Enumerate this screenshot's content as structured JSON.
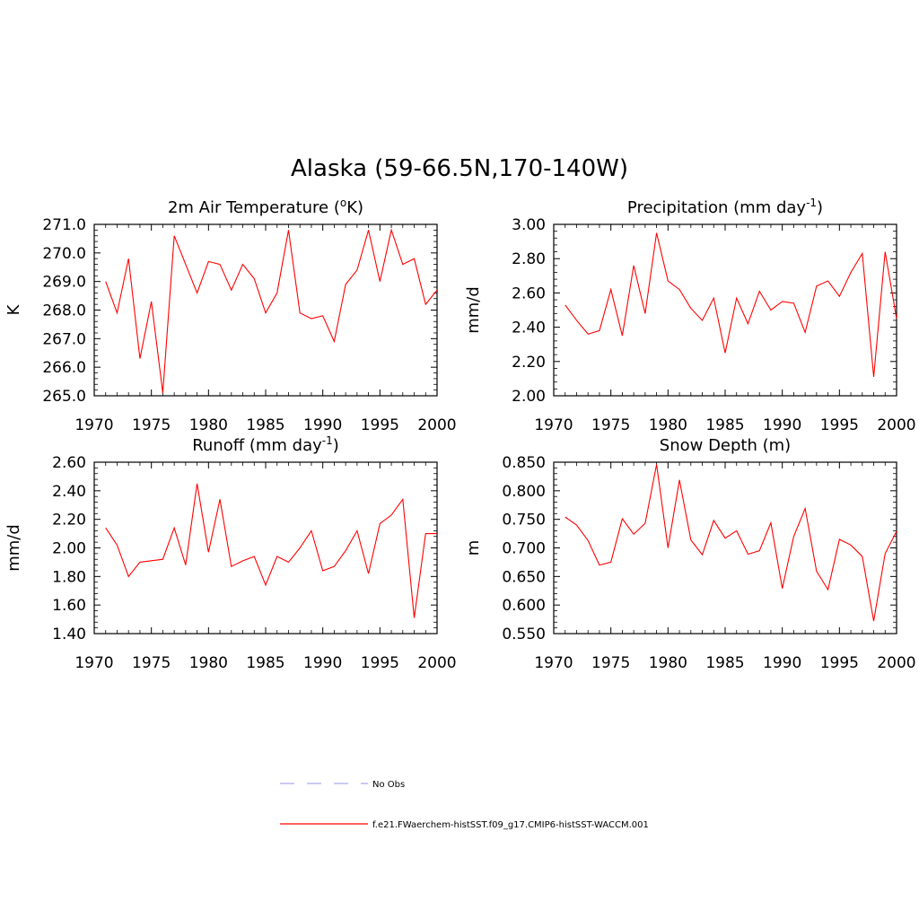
{
  "figure": {
    "title": "Alaska (59-66.5N,170-140W)"
  },
  "legend": {
    "items": [
      {
        "label": "No Obs",
        "style": "dashed",
        "color": "#aaaaee"
      },
      {
        "label": "f.e21.FWaerchem-histSST.f09_g17.CMIP6-histSST-WACCM.001",
        "style": "solid",
        "color": "#ff0000"
      }
    ]
  },
  "chart_data": [
    {
      "type": "line",
      "title": "2m Air Temperature",
      "title_unit": "K",
      "ylabel": "K",
      "xlim": [
        1970,
        2000
      ],
      "ylim": [
        265.0,
        271.0
      ],
      "yticks": [
        265.0,
        266.0,
        267.0,
        268.0,
        269.0,
        270.0,
        271.0
      ],
      "ytick_labels": [
        "265.0",
        "266.0",
        "267.0",
        "268.0",
        "269.0",
        "270.0",
        "271.0"
      ],
      "xticks": [
        1970,
        1975,
        1980,
        1985,
        1990,
        1995,
        2000
      ],
      "x": [
        1971,
        1972,
        1973,
        1974,
        1975,
        1976,
        1977,
        1978,
        1979,
        1980,
        1981,
        1982,
        1983,
        1984,
        1985,
        1986,
        1987,
        1988,
        1989,
        1990,
        1991,
        1992,
        1993,
        1994,
        1995,
        1996,
        1997,
        1998,
        1999,
        2000
      ],
      "series": [
        {
          "color": "#ff0000",
          "values": [
            269.0,
            267.9,
            269.8,
            266.3,
            268.3,
            265.1,
            270.6,
            269.6,
            268.6,
            269.7,
            269.6,
            268.7,
            269.6,
            269.1,
            267.9,
            268.6,
            270.8,
            267.9,
            267.7,
            267.8,
            266.9,
            268.9,
            269.4,
            270.8,
            269.0,
            270.8,
            269.6,
            269.8,
            268.2,
            268.7
          ]
        }
      ]
    },
    {
      "type": "line",
      "title": "Precipitation",
      "title_unit": "mm day",
      "title_sup": "-1",
      "ylabel": "mm/d",
      "xlim": [
        1970,
        2000
      ],
      "ylim": [
        2.0,
        3.0
      ],
      "yticks": [
        2.0,
        2.2,
        2.4,
        2.6,
        2.8,
        3.0
      ],
      "ytick_labels": [
        "2.00",
        "2.20",
        "2.40",
        "2.60",
        "2.80",
        "3.00"
      ],
      "xticks": [
        1970,
        1975,
        1980,
        1985,
        1990,
        1995,
        2000
      ],
      "x": [
        1971,
        1972,
        1973,
        1974,
        1975,
        1976,
        1977,
        1978,
        1979,
        1980,
        1981,
        1982,
        1983,
        1984,
        1985,
        1986,
        1987,
        1988,
        1989,
        1990,
        1991,
        1992,
        1993,
        1994,
        1995,
        1996,
        1997,
        1998,
        1999,
        2000
      ],
      "series": [
        {
          "color": "#ff0000",
          "values": [
            2.53,
            2.44,
            2.36,
            2.38,
            2.62,
            2.35,
            2.76,
            2.48,
            2.95,
            2.67,
            2.62,
            2.51,
            2.44,
            2.57,
            2.25,
            2.57,
            2.42,
            2.61,
            2.5,
            2.55,
            2.54,
            2.37,
            2.64,
            2.67,
            2.58,
            2.72,
            2.83,
            2.11,
            2.84,
            2.45
          ]
        }
      ]
    },
    {
      "type": "line",
      "title": "Runoff",
      "title_unit": "mm day",
      "title_sup": "-1",
      "ylabel": "mm/d",
      "xlim": [
        1970,
        2000
      ],
      "ylim": [
        1.4,
        2.6
      ],
      "yticks": [
        1.4,
        1.6,
        1.8,
        2.0,
        2.2,
        2.4,
        2.6
      ],
      "ytick_labels": [
        "1.40",
        "1.60",
        "1.80",
        "2.00",
        "2.20",
        "2.40",
        "2.60"
      ],
      "xticks": [
        1970,
        1975,
        1980,
        1985,
        1990,
        1995,
        2000
      ],
      "x": [
        1971,
        1972,
        1973,
        1974,
        1975,
        1976,
        1977,
        1978,
        1979,
        1980,
        1981,
        1982,
        1983,
        1984,
        1985,
        1986,
        1987,
        1988,
        1989,
        1990,
        1991,
        1992,
        1993,
        1994,
        1995,
        1996,
        1997,
        1998,
        1999,
        2000
      ],
      "series": [
        {
          "color": "#ff0000",
          "values": [
            2.14,
            2.02,
            1.8,
            1.9,
            1.91,
            1.92,
            2.14,
            1.88,
            2.45,
            1.97,
            2.34,
            1.87,
            1.91,
            1.94,
            1.74,
            1.94,
            1.9,
            2.0,
            2.12,
            1.84,
            1.87,
            1.98,
            2.12,
            1.82,
            2.17,
            2.23,
            2.34,
            1.51,
            2.1,
            2.1
          ]
        }
      ]
    },
    {
      "type": "line",
      "title": "Snow Depth (m)",
      "ylabel": "m",
      "xlim": [
        1970,
        2000
      ],
      "ylim": [
        0.55,
        0.85
      ],
      "yticks": [
        0.55,
        0.6,
        0.65,
        0.7,
        0.75,
        0.8,
        0.85
      ],
      "ytick_labels": [
        "0.550",
        "0.600",
        "0.650",
        "0.700",
        "0.750",
        "0.800",
        "0.850"
      ],
      "xticks": [
        1970,
        1975,
        1980,
        1985,
        1990,
        1995,
        2000
      ],
      "x": [
        1971,
        1972,
        1973,
        1974,
        1975,
        1976,
        1977,
        1978,
        1979,
        1980,
        1981,
        1982,
        1983,
        1984,
        1985,
        1986,
        1987,
        1988,
        1989,
        1990,
        1991,
        1992,
        1993,
        1994,
        1995,
        1996,
        1997,
        1998,
        1999,
        2000
      ],
      "series": [
        {
          "color": "#ff0000",
          "values": [
            0.754,
            0.74,
            0.713,
            0.67,
            0.675,
            0.751,
            0.724,
            0.743,
            0.846,
            0.7,
            0.819,
            0.714,
            0.688,
            0.748,
            0.717,
            0.73,
            0.689,
            0.695,
            0.744,
            0.629,
            0.72,
            0.769,
            0.659,
            0.627,
            0.715,
            0.705,
            0.685,
            0.572,
            0.69,
            0.729
          ]
        }
      ]
    }
  ]
}
